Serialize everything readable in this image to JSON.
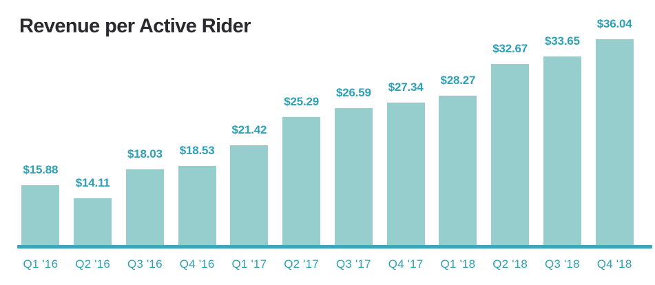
{
  "title": "Revenue per Active Rider",
  "chart_data": {
    "type": "bar",
    "title": "Revenue per Active Rider",
    "categories": [
      "Q1 '16",
      "Q2 '16",
      "Q3 '16",
      "Q4 '16",
      "Q1 '17",
      "Q2 '17",
      "Q3 '17",
      "Q4 '17",
      "Q1 '18",
      "Q2 '18",
      "Q3 '18",
      "Q4 '18"
    ],
    "values": [
      15.88,
      14.11,
      18.03,
      18.53,
      21.42,
      25.29,
      26.59,
      27.34,
      28.27,
      32.67,
      33.65,
      36.04
    ],
    "value_labels": [
      "$15.88",
      "$14.11",
      "$18.03",
      "$18.53",
      "$21.42",
      "$25.29",
      "$26.59",
      "$27.34",
      "$28.27",
      "$32.67",
      "$33.65",
      "$36.04"
    ],
    "xlabel": "",
    "ylabel": "",
    "ylim": [
      7.5,
      36.5
    ],
    "grid": false,
    "legend": false,
    "value_label_position": "above-bar",
    "colors": {
      "background": "#ffffff",
      "title": "#29292e",
      "bar_fill": "#96cdcd",
      "data_label": "#2da1b5",
      "tick_label": "#2da1b5",
      "axis_line": "#3ba6ba"
    }
  }
}
